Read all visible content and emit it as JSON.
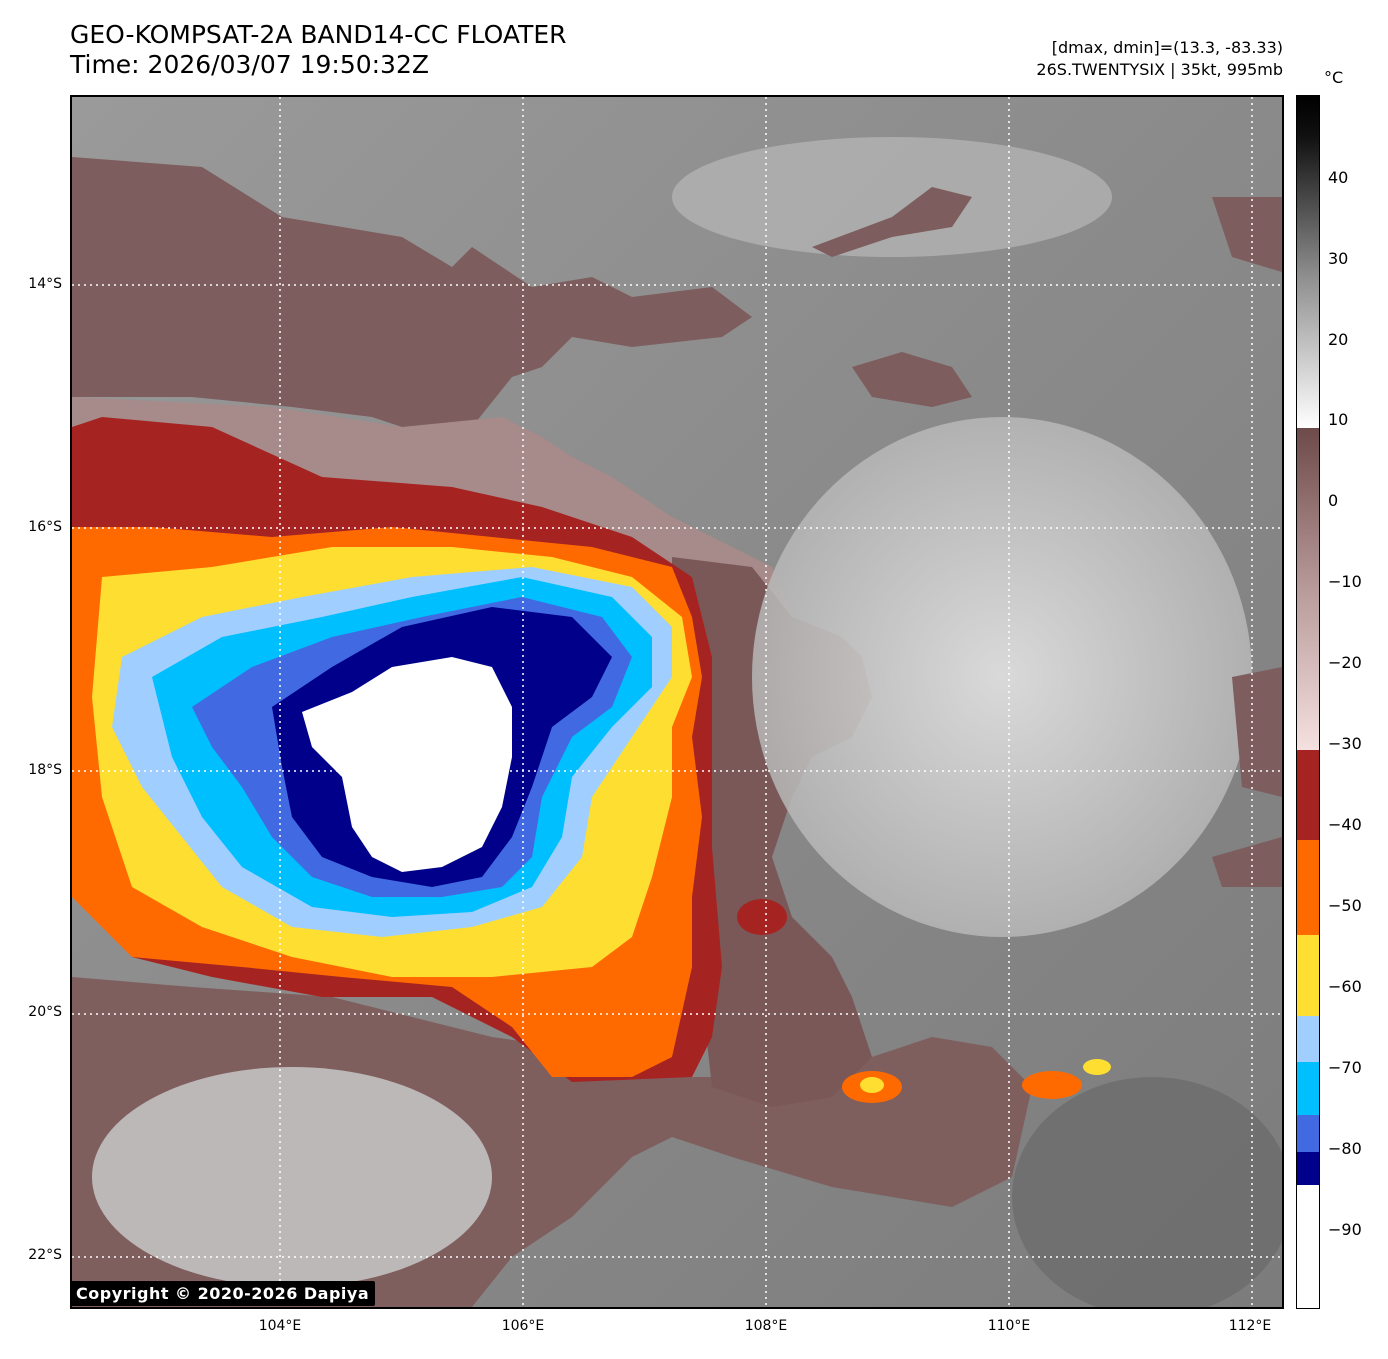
{
  "header": {
    "title_line1": "GEO-KOMPSAT-2A BAND14-CC FLOATER",
    "title_line2": "Time: 2026/03/07 19:50:32Z",
    "info_line1": "[dmax, dmin]=(13.3, -83.33)",
    "info_line2": "26S.TWENTYSIX | 35kt, 995mb"
  },
  "map": {
    "lat_labels": [
      "14°S",
      "16°S",
      "18°S",
      "20°S",
      "22°S"
    ],
    "lon_labels": [
      "104°E",
      "106°E",
      "108°E",
      "110°E",
      "112°E"
    ],
    "copyright": "Copyright © 2020-2026 Dapiya"
  },
  "colorbar": {
    "unit": "°C",
    "ticks": [
      "40",
      "30",
      "20",
      "10",
      "0",
      "−10",
      "−20",
      "−30",
      "−40",
      "−50",
      "−60",
      "−70",
      "−80",
      "−90"
    ],
    "colors": {
      "white_core": "#ffffff",
      "navy": "#00008b",
      "royal_blue": "#4169e1",
      "deep_sky_blue": "#00bfff",
      "light_blue": "#a0cfff",
      "yellow": "#fede30",
      "orange": "#ff6a00",
      "dark_red": "#a52422",
      "mauve": "#7a5050",
      "pink": "#f0d8d8",
      "gray_light": "#ffffff",
      "gray_dark": "#000000"
    }
  }
}
